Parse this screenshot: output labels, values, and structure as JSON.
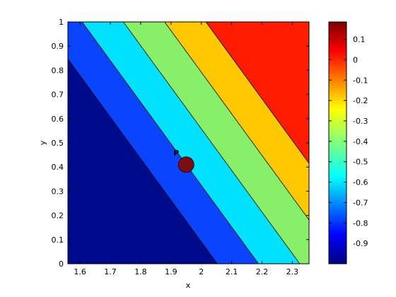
{
  "chart_data": {
    "type": "contourf",
    "title": "",
    "xlabel": "x",
    "ylabel": "y",
    "xlim": [
      1.56,
      2.355
    ],
    "ylim": [
      0,
      1
    ],
    "xticks": [
      1.6,
      1.7,
      1.8,
      1.9,
      2,
      2.1,
      2.2,
      2.3
    ],
    "yticks": [
      0,
      0.1,
      0.2,
      0.3,
      0.4,
      0.5,
      0.6,
      0.7,
      0.8,
      0.9,
      1
    ],
    "colorbar": {
      "range": [
        -1.0,
        0.185
      ],
      "ticks": [
        0.1,
        0,
        -0.1,
        -0.2,
        -0.3,
        -0.4,
        -0.5,
        -0.6,
        -0.7,
        -0.8,
        -0.9
      ],
      "tick_labels": [
        "0.1",
        "0",
        "-0.1",
        "-0.2",
        "-0.3",
        "-0.4",
        "-0.5",
        "-0.6",
        "-0.7",
        "-0.8",
        "-0.9"
      ]
    },
    "field": {
      "description": "linear field z = a*(x-1.95) + b*(y-0.41) + z0",
      "a": 1.47,
      "b": 0.855,
      "z0": -0.6
    },
    "levels": [
      -0.8,
      -0.6,
      -0.4,
      -0.2,
      0
    ],
    "band_colors": [
      "#000a8c",
      "#0a44ff",
      "#00e0ff",
      "#88f068",
      "#ffc800",
      "#ff1c00"
    ],
    "point": {
      "label": "P",
      "x": 1.95,
      "y": 0.41,
      "color": "#7a0e10"
    }
  }
}
